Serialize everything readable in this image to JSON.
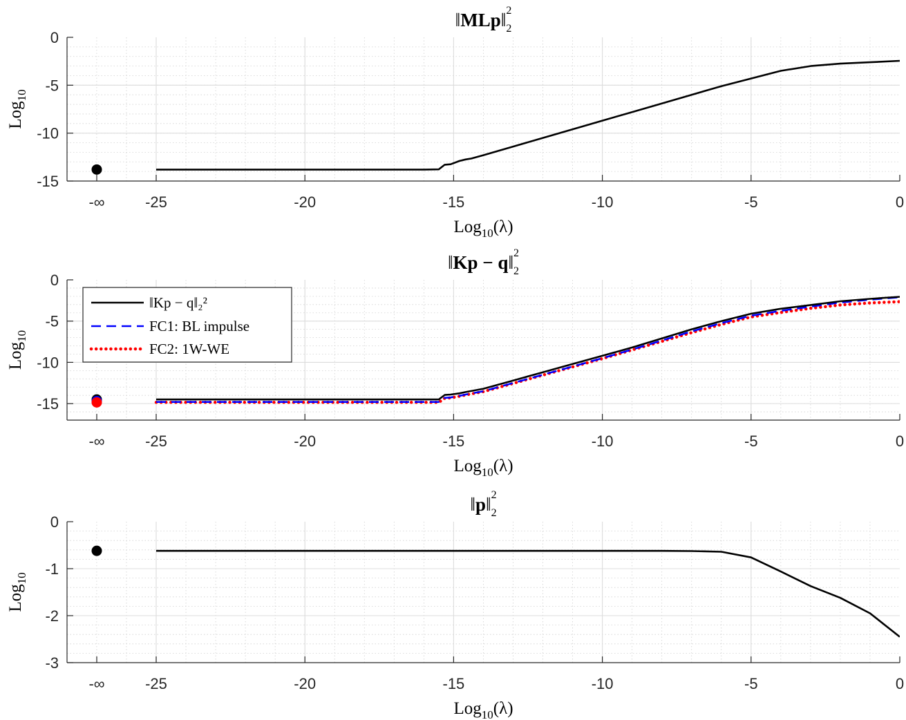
{
  "chart_data": [
    {
      "type": "line",
      "title": "‖MLp‖₂²",
      "title_main": "MLp",
      "xlabel": "Log10(λ)",
      "ylabel": "Log10",
      "xlim": [
        -27,
        0
      ],
      "ylim": [
        -15,
        0
      ],
      "xticks": [
        -25,
        -20,
        -15,
        -10,
        -5,
        0
      ],
      "xtick_labels": [
        "-25",
        "-20",
        "-15",
        "-10",
        "-5",
        "0"
      ],
      "yticks": [
        0,
        -5,
        -10,
        -15
      ],
      "ytick_labels": [
        "0",
        "-5",
        "-10",
        "-15"
      ],
      "neg_inf_label": "-∞",
      "grid": true,
      "series": [
        {
          "name": "‖MLp‖₂²",
          "color": "#000000",
          "style": "solid",
          "x": [
            -25,
            -24,
            -22,
            -20,
            -18,
            -16,
            -15.5,
            -15.3,
            -15.1,
            -14.8,
            -14.6,
            -14.4,
            -14,
            -13,
            -12,
            -11,
            -10,
            -9,
            -8,
            -7,
            -6,
            -5,
            -4,
            -3,
            -2,
            -1,
            0
          ],
          "y": [
            -13.8,
            -13.8,
            -13.8,
            -13.8,
            -13.8,
            -13.8,
            -13.78,
            -13.3,
            -13.25,
            -12.9,
            -12.75,
            -12.65,
            -12.3,
            -11.4,
            -10.5,
            -9.6,
            -8.7,
            -7.8,
            -6.9,
            -6.0,
            -5.1,
            -4.3,
            -3.5,
            -3.0,
            -2.75,
            -2.6,
            -2.45
          ]
        }
      ],
      "neg_inf_points": [
        {
          "name": "‖MLp‖₂²",
          "y": -13.8,
          "color": "#000000"
        }
      ]
    },
    {
      "type": "line",
      "title": "‖Kp − q‖₂²",
      "title_main": "Kp − q",
      "xlabel": "Log10(λ)",
      "ylabel": "Log10",
      "xlim": [
        -27,
        0
      ],
      "ylim": [
        -17,
        0
      ],
      "xticks": [
        -25,
        -20,
        -15,
        -10,
        -5,
        0
      ],
      "xtick_labels": [
        "-25",
        "-20",
        "-15",
        "-10",
        "-5",
        "0"
      ],
      "yticks": [
        0,
        -5,
        -10,
        -15
      ],
      "ytick_labels": [
        "0",
        "-5",
        "-10",
        "-15"
      ],
      "neg_inf_label": "-∞",
      "grid": true,
      "legend": {
        "placement": "top-left",
        "entries": [
          "‖Kp − q‖₂²",
          "FC1: BL impulse",
          "FC2: 1W-WE"
        ]
      },
      "series": [
        {
          "name": "‖Kp − q‖₂²",
          "color": "#000000",
          "style": "solid",
          "x": [
            -25,
            -22,
            -20,
            -18,
            -16,
            -15.5,
            -15.3,
            -15.1,
            -14.8,
            -14.6,
            -14,
            -13,
            -12,
            -11,
            -10,
            -9,
            -8,
            -7,
            -6,
            -5,
            -4,
            -3,
            -2,
            -1,
            0
          ],
          "y": [
            -14.5,
            -14.5,
            -14.5,
            -14.5,
            -14.5,
            -14.5,
            -13.95,
            -13.9,
            -13.75,
            -13.6,
            -13.2,
            -12.2,
            -11.2,
            -10.2,
            -9.2,
            -8.2,
            -7.1,
            -6.0,
            -5.0,
            -4.1,
            -3.5,
            -3.05,
            -2.6,
            -2.3,
            -2.05
          ]
        },
        {
          "name": "FC1: BL impulse",
          "color": "#0000ff",
          "style": "dashed",
          "x": [
            -25,
            -22,
            -20,
            -18,
            -16,
            -15.5,
            -15.3,
            -15.1,
            -14.8,
            -14.6,
            -14,
            -13,
            -12,
            -11,
            -10,
            -9,
            -8,
            -7,
            -6,
            -5,
            -4,
            -3,
            -2,
            -1,
            0
          ],
          "y": [
            -14.8,
            -14.8,
            -14.8,
            -14.8,
            -14.8,
            -14.8,
            -14.3,
            -14.25,
            -14.05,
            -13.9,
            -13.5,
            -12.5,
            -11.5,
            -10.5,
            -9.5,
            -8.45,
            -7.35,
            -6.25,
            -5.25,
            -4.35,
            -3.75,
            -3.25,
            -2.75,
            -2.4,
            -2.1
          ]
        },
        {
          "name": "FC2: 1W-WE",
          "color": "#ff0000",
          "style": "dotted",
          "x": [
            -25,
            -22,
            -20,
            -18,
            -16,
            -15.5,
            -15.3,
            -15.1,
            -14.8,
            -14.6,
            -14,
            -13,
            -12,
            -11,
            -10,
            -9,
            -8,
            -7,
            -6,
            -5,
            -4,
            -3,
            -2,
            -1,
            0
          ],
          "y": [
            -14.85,
            -14.85,
            -14.85,
            -14.85,
            -14.85,
            -14.85,
            -14.35,
            -14.3,
            -14.1,
            -13.95,
            -13.55,
            -12.55,
            -11.55,
            -10.55,
            -9.55,
            -8.5,
            -7.45,
            -6.4,
            -5.4,
            -4.5,
            -3.95,
            -3.45,
            -3.05,
            -2.8,
            -2.65
          ]
        }
      ],
      "neg_inf_points": [
        {
          "name": "‖Kp − q‖₂²",
          "y": -14.5,
          "color": "#000000"
        },
        {
          "name": "FC1: BL impulse",
          "y": -14.7,
          "color": "#0000ff"
        },
        {
          "name": "FC2: 1W-WE",
          "y": -14.85,
          "color": "#ff0000"
        }
      ]
    },
    {
      "type": "line",
      "title": "‖p‖₂²",
      "title_main": "p",
      "xlabel": "Log10(λ)",
      "ylabel": "Log10",
      "xlim": [
        -27,
        0
      ],
      "ylim": [
        -3,
        0
      ],
      "xticks": [
        -25,
        -20,
        -15,
        -10,
        -5,
        0
      ],
      "xtick_labels": [
        "-25",
        "-20",
        "-15",
        "-10",
        "-5",
        "0"
      ],
      "yticks": [
        0,
        -1,
        -2,
        -3
      ],
      "ytick_labels": [
        "0",
        "-1",
        "-2",
        "-3"
      ],
      "neg_inf_label": "-∞",
      "grid": true,
      "series": [
        {
          "name": "‖p‖₂²",
          "color": "#000000",
          "style": "solid",
          "x": [
            -25,
            -20,
            -15,
            -10,
            -8,
            -7,
            -6,
            -5,
            -4,
            -3,
            -2,
            -1,
            0
          ],
          "y": [
            -0.62,
            -0.62,
            -0.62,
            -0.62,
            -0.62,
            -0.625,
            -0.64,
            -0.76,
            -1.06,
            -1.37,
            -1.62,
            -1.95,
            -2.45
          ]
        }
      ],
      "neg_inf_points": [
        {
          "name": "‖p‖₂²",
          "y": -0.62,
          "color": "#000000"
        }
      ]
    }
  ]
}
